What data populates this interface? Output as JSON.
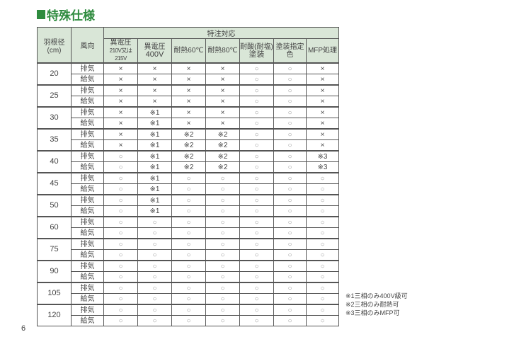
{
  "title": "特殊仕様",
  "colors": {
    "accent": "#2e8b3e",
    "header_bg": "#d9e6d7"
  },
  "table": {
    "header": {
      "diameter": "羽根径",
      "diameter_unit": "(cm)",
      "direction": "風向",
      "group": "特注対応",
      "columns": [
        {
          "line1": "異電圧",
          "line2": "210V又は215V"
        },
        {
          "line1": "異電圧",
          "line2": "400V"
        },
        {
          "line1": "耐熱60℃",
          "line2": ""
        },
        {
          "line1": "耐熱80℃",
          "line2": ""
        },
        {
          "line1": "耐酸(耐塩)",
          "line2": "塗装"
        },
        {
          "line1": "塗装指定色",
          "line2": ""
        },
        {
          "line1": "MFP処理",
          "line2": ""
        }
      ]
    },
    "groups": [
      {
        "size": "20",
        "rows": [
          {
            "dir": "排気",
            "marks": [
              "×",
              "×",
              "×",
              "×",
              "○",
              "○",
              "×"
            ]
          },
          {
            "dir": "給気",
            "marks": [
              "×",
              "×",
              "×",
              "×",
              "○",
              "○",
              "×"
            ]
          }
        ]
      },
      {
        "size": "25",
        "rows": [
          {
            "dir": "排気",
            "marks": [
              "×",
              "×",
              "×",
              "×",
              "○",
              "○",
              "×"
            ]
          },
          {
            "dir": "給気",
            "marks": [
              "×",
              "×",
              "×",
              "×",
              "○",
              "○",
              "×"
            ]
          }
        ]
      },
      {
        "size": "30",
        "rows": [
          {
            "dir": "排気",
            "marks": [
              "×",
              "※1",
              "×",
              "×",
              "○",
              "○",
              "×"
            ]
          },
          {
            "dir": "給気",
            "marks": [
              "×",
              "※1",
              "×",
              "×",
              "○",
              "○",
              "×"
            ]
          }
        ]
      },
      {
        "size": "35",
        "rows": [
          {
            "dir": "排気",
            "marks": [
              "×",
              "※1",
              "※2",
              "※2",
              "○",
              "○",
              "×"
            ]
          },
          {
            "dir": "給気",
            "marks": [
              "×",
              "※1",
              "※2",
              "※2",
              "○",
              "○",
              "×"
            ]
          }
        ]
      },
      {
        "size": "40",
        "rows": [
          {
            "dir": "排気",
            "marks": [
              "○",
              "※1",
              "※2",
              "※2",
              "○",
              "○",
              "※3"
            ]
          },
          {
            "dir": "給気",
            "marks": [
              "○",
              "※1",
              "※2",
              "※2",
              "○",
              "○",
              "※3"
            ]
          }
        ]
      },
      {
        "size": "45",
        "rows": [
          {
            "dir": "排気",
            "marks": [
              "○",
              "※1",
              "○",
              "○",
              "○",
              "○",
              "○"
            ]
          },
          {
            "dir": "給気",
            "marks": [
              "○",
              "※1",
              "○",
              "○",
              "○",
              "○",
              "○"
            ]
          }
        ]
      },
      {
        "size": "50",
        "rows": [
          {
            "dir": "排気",
            "marks": [
              "○",
              "※1",
              "○",
              "○",
              "○",
              "○",
              "○"
            ]
          },
          {
            "dir": "給気",
            "marks": [
              "○",
              "※1",
              "○",
              "○",
              "○",
              "○",
              "○"
            ]
          }
        ]
      },
      {
        "size": "60",
        "rows": [
          {
            "dir": "排気",
            "marks": [
              "○",
              "○",
              "○",
              "○",
              "○",
              "○",
              "○"
            ]
          },
          {
            "dir": "給気",
            "marks": [
              "○",
              "○",
              "○",
              "○",
              "○",
              "○",
              "○"
            ]
          }
        ]
      },
      {
        "size": "75",
        "rows": [
          {
            "dir": "排気",
            "marks": [
              "○",
              "○",
              "○",
              "○",
              "○",
              "○",
              "○"
            ]
          },
          {
            "dir": "給気",
            "marks": [
              "○",
              "○",
              "○",
              "○",
              "○",
              "○",
              "○"
            ]
          }
        ]
      },
      {
        "size": "90",
        "rows": [
          {
            "dir": "排気",
            "marks": [
              "○",
              "○",
              "○",
              "○",
              "○",
              "○",
              "○"
            ]
          },
          {
            "dir": "給気",
            "marks": [
              "○",
              "○",
              "○",
              "○",
              "○",
              "○",
              "○"
            ]
          }
        ]
      },
      {
        "size": "105",
        "rows": [
          {
            "dir": "排気",
            "marks": [
              "○",
              "○",
              "○",
              "○",
              "○",
              "○",
              "○"
            ]
          },
          {
            "dir": "給気",
            "marks": [
              "○",
              "○",
              "○",
              "○",
              "○",
              "○",
              "○"
            ]
          }
        ]
      },
      {
        "size": "120",
        "rows": [
          {
            "dir": "排気",
            "marks": [
              "○",
              "○",
              "○",
              "○",
              "○",
              "○",
              "○"
            ]
          },
          {
            "dir": "給気",
            "marks": [
              "○",
              "○",
              "○",
              "○",
              "○",
              "○",
              "○"
            ]
          }
        ]
      }
    ]
  },
  "notes": [
    "※1三相のみ400V級可",
    "※2三相のみ耐熱可",
    "※3三相のみMFP可"
  ],
  "page_number": "6"
}
